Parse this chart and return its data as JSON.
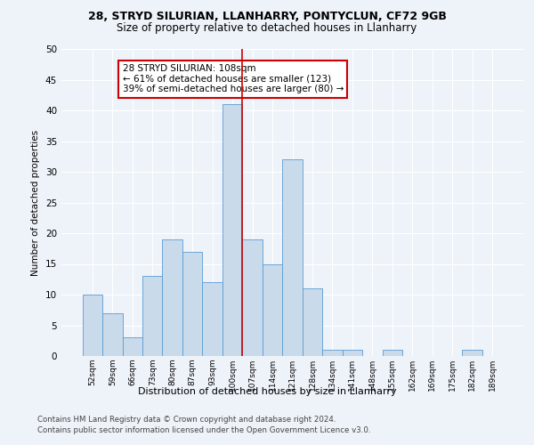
{
  "title1": "28, STRYD SILURIAN, LLANHARRY, PONTYCLUN, CF72 9GB",
  "title2": "Size of property relative to detached houses in Llanharry",
  "xlabel": "Distribution of detached houses by size in Llanharry",
  "ylabel": "Number of detached properties",
  "categories": [
    "52sqm",
    "59sqm",
    "66sqm",
    "73sqm",
    "80sqm",
    "87sqm",
    "93sqm",
    "100sqm",
    "107sqm",
    "114sqm",
    "121sqm",
    "128sqm",
    "134sqm",
    "141sqm",
    "148sqm",
    "155sqm",
    "162sqm",
    "169sqm",
    "175sqm",
    "182sqm",
    "189sqm"
  ],
  "values": [
    10,
    7,
    3,
    13,
    19,
    17,
    12,
    41,
    19,
    15,
    32,
    11,
    1,
    1,
    0,
    1,
    0,
    0,
    0,
    1,
    0
  ],
  "bar_color": "#c9daea",
  "bar_edge_color": "#5b9bd5",
  "vline_index": 8,
  "vline_color": "#cc0000",
  "annotation_text": "28 STRYD SILURIAN: 108sqm\n← 61% of detached houses are smaller (123)\n39% of semi-detached houses are larger (80) →",
  "annotation_box_color": "#ffffff",
  "annotation_box_edge": "#cc0000",
  "bg_color": "#eef3f9",
  "plot_bg_color": "#eef3f9",
  "footer1": "Contains HM Land Registry data © Crown copyright and database right 2024.",
  "footer2": "Contains public sector information licensed under the Open Government Licence v3.0.",
  "ylim": [
    0,
    50
  ],
  "yticks": [
    0,
    5,
    10,
    15,
    20,
    25,
    30,
    35,
    40,
    45,
    50
  ]
}
